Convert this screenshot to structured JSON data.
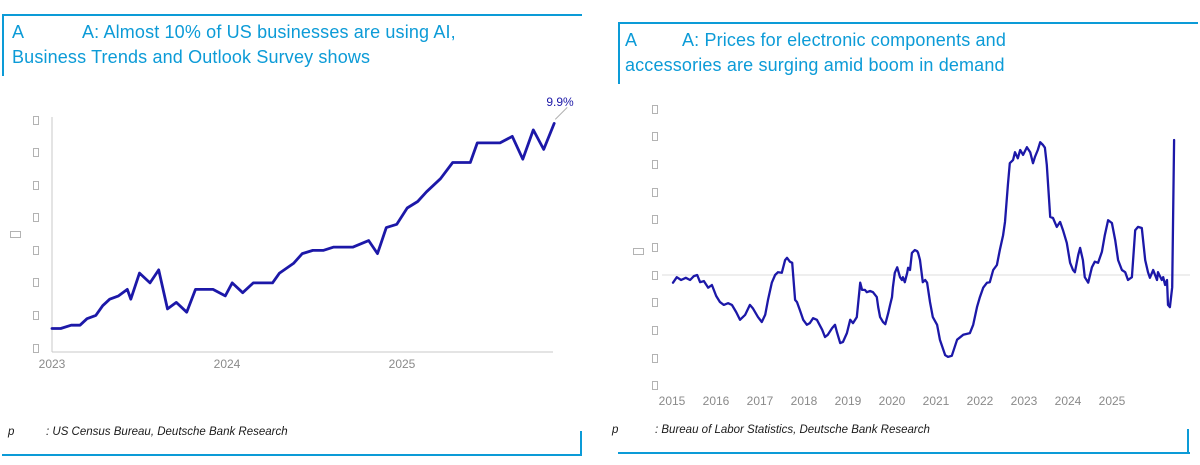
{
  "colors": {
    "accent": "#0c9bd7",
    "series_line": "#1c18a8",
    "axis_line": "#c9c9c9",
    "tick_label": "#8a8a8a",
    "zero_line": "#e3e3e3",
    "footer_text": "#1a1a1a",
    "placeholder_box": "#b3b3b3",
    "leader_line": "#b0b0b0"
  },
  "panels": [
    {
      "figure_label": "A",
      "title_lines": [
        "A: Almost 10% of US businesses are using AI,",
        "Business Trends and Outlook Survey shows"
      ],
      "source_prefix": "p",
      "source_text": ": US Census Bureau, Deutsche Bank Research"
    },
    {
      "figure_label": "A",
      "title_lines": [
        "A: Prices for electronic components and",
        "accessories are surging amid boom in demand"
      ],
      "source_prefix": "p",
      "source_text": ": Bureau of Labor Statistics, Deutsche Bank Research"
    }
  ],
  "chart_data": [
    {
      "type": "line",
      "title": "A: Almost 10% of US businesses are using AI, Business Trends and Outlook Survey shows",
      "series_name": "share-of-us-businesses-using-ai",
      "end_label": "9.9%",
      "x_tick_labels": [
        "2023",
        "2024",
        "2025"
      ],
      "y_axis": {
        "tick_count": 8,
        "tick_labels_rendered_as": "placeholder-boxes",
        "implied_range": [
          3,
          10
        ],
        "implied_step": 1,
        "axis_lines": true,
        "grid": false
      },
      "x_range": [
        2023.0,
        2025.87
      ],
      "points": [
        [
          2023.0,
          3.6
        ],
        [
          2023.05,
          3.6
        ],
        [
          2023.11,
          3.7
        ],
        [
          2023.16,
          3.7
        ],
        [
          2023.2,
          3.9
        ],
        [
          2023.25,
          4.0
        ],
        [
          2023.29,
          4.3
        ],
        [
          2023.33,
          4.5
        ],
        [
          2023.38,
          4.6
        ],
        [
          2023.43,
          4.8
        ],
        [
          2023.45,
          4.5
        ],
        [
          2023.5,
          5.3
        ],
        [
          2023.56,
          5.0
        ],
        [
          2023.61,
          5.4
        ],
        [
          2023.66,
          4.2
        ],
        [
          2023.71,
          4.4
        ],
        [
          2023.77,
          4.1
        ],
        [
          2023.82,
          4.8
        ],
        [
          2023.87,
          4.8
        ],
        [
          2023.92,
          4.8
        ],
        [
          2023.99,
          4.6
        ],
        [
          2024.03,
          5.0
        ],
        [
          2024.09,
          4.7
        ],
        [
          2024.15,
          5.0
        ],
        [
          2024.21,
          5.0
        ],
        [
          2024.26,
          5.0
        ],
        [
          2024.3,
          5.3
        ],
        [
          2024.38,
          5.6
        ],
        [
          2024.43,
          5.9
        ],
        [
          2024.49,
          6.0
        ],
        [
          2024.55,
          6.0
        ],
        [
          2024.61,
          6.1
        ],
        [
          2024.66,
          6.1
        ],
        [
          2024.72,
          6.1
        ],
        [
          2024.81,
          6.3
        ],
        [
          2024.86,
          5.9
        ],
        [
          2024.91,
          6.7
        ],
        [
          2024.97,
          6.8
        ],
        [
          2025.03,
          7.3
        ],
        [
          2025.09,
          7.5
        ],
        [
          2025.14,
          7.8
        ],
        [
          2025.22,
          8.2
        ],
        [
          2025.29,
          8.7
        ],
        [
          2025.35,
          8.7
        ],
        [
          2025.39,
          8.7
        ],
        [
          2025.43,
          9.3
        ],
        [
          2025.5,
          9.3
        ],
        [
          2025.56,
          9.3
        ],
        [
          2025.63,
          9.5
        ],
        [
          2025.69,
          8.8
        ],
        [
          2025.75,
          9.7
        ],
        [
          2025.81,
          9.1
        ],
        [
          2025.87,
          9.9
        ]
      ]
    },
    {
      "type": "line",
      "title": "A: Prices for electronic components and accessories are surging amid boom in demand",
      "series_name": "ppi-electronic-components-and-accessories",
      "x_tick_labels": [
        "2015",
        "2016",
        "2017",
        "2018",
        "2019",
        "2020",
        "2021",
        "2022",
        "2023",
        "2024",
        "2025"
      ],
      "y_axis": {
        "tick_count": 11,
        "tick_labels_rendered_as": "placeholder-boxes",
        "implied_range": [
          -20,
          30
        ],
        "implied_step": 5,
        "zero_line": true,
        "axis_lines": false,
        "grid": false
      },
      "x_range": [
        2015.0,
        2025.55
      ],
      "points": [
        [
          2015.0,
          -1.4
        ],
        [
          2015.08,
          -0.4
        ],
        [
          2015.17,
          -0.9
        ],
        [
          2015.27,
          -0.5
        ],
        [
          2015.36,
          -0.9
        ],
        [
          2015.44,
          -0.2
        ],
        [
          2015.51,
          0.0
        ],
        [
          2015.57,
          -1.3
        ],
        [
          2015.65,
          -1.1
        ],
        [
          2015.74,
          -2.3
        ],
        [
          2015.82,
          -1.8
        ],
        [
          2015.91,
          -3.8
        ],
        [
          2015.99,
          -4.9
        ],
        [
          2016.07,
          -5.4
        ],
        [
          2016.16,
          -5.1
        ],
        [
          2016.24,
          -5.4
        ],
        [
          2016.33,
          -6.7
        ],
        [
          2016.41,
          -8.1
        ],
        [
          2016.52,
          -7.2
        ],
        [
          2016.62,
          -5.4
        ],
        [
          2016.68,
          -6.0
        ],
        [
          2016.79,
          -7.6
        ],
        [
          2016.87,
          -8.5
        ],
        [
          2016.94,
          -7.2
        ],
        [
          2017.0,
          -4.5
        ],
        [
          2017.08,
          -1.4
        ],
        [
          2017.15,
          0.0
        ],
        [
          2017.21,
          0.5
        ],
        [
          2017.29,
          0.4
        ],
        [
          2017.36,
          2.7
        ],
        [
          2017.4,
          3.1
        ],
        [
          2017.46,
          2.4
        ],
        [
          2017.51,
          2.2
        ],
        [
          2017.57,
          -4.5
        ],
        [
          2017.61,
          -4.9
        ],
        [
          2017.67,
          -6.3
        ],
        [
          2017.74,
          -8.1
        ],
        [
          2017.82,
          -9.0
        ],
        [
          2017.88,
          -8.7
        ],
        [
          2017.95,
          -7.8
        ],
        [
          2018.03,
          -8.1
        ],
        [
          2018.14,
          -9.9
        ],
        [
          2018.2,
          -11.2
        ],
        [
          2018.26,
          -10.8
        ],
        [
          2018.35,
          -9.6
        ],
        [
          2018.41,
          -9.0
        ],
        [
          2018.45,
          -10.3
        ],
        [
          2018.52,
          -12.3
        ],
        [
          2018.58,
          -12.1
        ],
        [
          2018.66,
          -10.5
        ],
        [
          2018.73,
          -8.1
        ],
        [
          2018.79,
          -8.7
        ],
        [
          2018.87,
          -7.6
        ],
        [
          2018.94,
          -1.4
        ],
        [
          2018.98,
          -2.7
        ],
        [
          2019.04,
          -2.7
        ],
        [
          2019.08,
          -3.1
        ],
        [
          2019.15,
          -2.9
        ],
        [
          2019.21,
          -3.1
        ],
        [
          2019.29,
          -4.0
        ],
        [
          2019.32,
          -5.8
        ],
        [
          2019.36,
          -7.6
        ],
        [
          2019.42,
          -8.5
        ],
        [
          2019.47,
          -8.9
        ],
        [
          2019.53,
          -6.9
        ],
        [
          2019.57,
          -5.4
        ],
        [
          2019.61,
          -4.0
        ],
        [
          2019.63,
          -2.2
        ],
        [
          2019.67,
          0.4
        ],
        [
          2019.72,
          1.4
        ],
        [
          2019.78,
          -0.4
        ],
        [
          2019.82,
          -0.9
        ],
        [
          2019.84,
          -0.4
        ],
        [
          2019.88,
          -1.3
        ],
        [
          2019.93,
          0.4
        ],
        [
          2019.95,
          1.3
        ],
        [
          2019.99,
          0.9
        ],
        [
          2020.03,
          4.0
        ],
        [
          2020.09,
          4.5
        ],
        [
          2020.14,
          4.3
        ],
        [
          2020.16,
          4.0
        ],
        [
          2020.2,
          2.7
        ],
        [
          2020.26,
          -1.3
        ],
        [
          2020.31,
          -0.9
        ],
        [
          2020.35,
          -1.4
        ],
        [
          2020.41,
          -4.9
        ],
        [
          2020.47,
          -7.6
        ],
        [
          2020.56,
          -9.0
        ],
        [
          2020.62,
          -11.7
        ],
        [
          2020.73,
          -14.5
        ],
        [
          2020.79,
          -14.8
        ],
        [
          2020.87,
          -14.6
        ],
        [
          2020.98,
          -11.7
        ],
        [
          2021.11,
          -10.8
        ],
        [
          2021.25,
          -10.5
        ],
        [
          2021.32,
          -9.0
        ],
        [
          2021.4,
          -5.8
        ],
        [
          2021.46,
          -4.0
        ],
        [
          2021.53,
          -2.3
        ],
        [
          2021.61,
          -1.4
        ],
        [
          2021.67,
          -1.3
        ],
        [
          2021.74,
          0.9
        ],
        [
          2021.82,
          1.8
        ],
        [
          2021.88,
          4.5
        ],
        [
          2021.95,
          7.2
        ],
        [
          2021.99,
          9.6
        ],
        [
          2022.05,
          16.3
        ],
        [
          2022.09,
          20.2
        ],
        [
          2022.16,
          20.8
        ],
        [
          2022.2,
          22.2
        ],
        [
          2022.26,
          21.1
        ],
        [
          2022.31,
          22.6
        ],
        [
          2022.37,
          21.7
        ],
        [
          2022.45,
          23.1
        ],
        [
          2022.52,
          22.2
        ],
        [
          2022.58,
          20.2
        ],
        [
          2022.62,
          21.3
        ],
        [
          2022.68,
          22.6
        ],
        [
          2022.73,
          24.0
        ],
        [
          2022.79,
          23.5
        ],
        [
          2022.83,
          23.0
        ],
        [
          2022.87,
          19.9
        ],
        [
          2022.94,
          10.5
        ],
        [
          2023.0,
          10.3
        ],
        [
          2023.08,
          8.7
        ],
        [
          2023.15,
          9.6
        ],
        [
          2023.21,
          8.1
        ],
        [
          2023.29,
          5.8
        ],
        [
          2023.36,
          2.2
        ],
        [
          2023.42,
          0.9
        ],
        [
          2023.46,
          0.5
        ],
        [
          2023.53,
          3.6
        ],
        [
          2023.57,
          4.9
        ],
        [
          2023.63,
          2.7
        ],
        [
          2023.67,
          -0.4
        ],
        [
          2023.74,
          -1.4
        ],
        [
          2023.82,
          1.4
        ],
        [
          2023.88,
          2.4
        ],
        [
          2023.95,
          2.2
        ],
        [
          2024.03,
          4.2
        ],
        [
          2024.09,
          7.2
        ],
        [
          2024.16,
          9.9
        ],
        [
          2024.24,
          9.4
        ],
        [
          2024.31,
          6.3
        ],
        [
          2024.37,
          2.7
        ],
        [
          2024.45,
          0.9
        ],
        [
          2024.52,
          0.5
        ],
        [
          2024.58,
          -0.9
        ],
        [
          2024.66,
          -0.4
        ],
        [
          2024.73,
          8.1
        ],
        [
          2024.79,
          8.7
        ],
        [
          2024.87,
          8.5
        ],
        [
          2024.94,
          2.7
        ],
        [
          2025.0,
          0.5
        ],
        [
          2025.04,
          -0.5
        ],
        [
          2025.11,
          0.9
        ],
        [
          2025.19,
          -0.9
        ],
        [
          2025.21,
          0.5
        ],
        [
          2025.29,
          -0.9
        ],
        [
          2025.32,
          -0.4
        ],
        [
          2025.36,
          -1.8
        ],
        [
          2025.4,
          -0.9
        ],
        [
          2025.42,
          -5.4
        ],
        [
          2025.46,
          -5.8
        ],
        [
          2025.51,
          -2.2
        ],
        [
          2025.55,
          24.4
        ]
      ]
    }
  ]
}
